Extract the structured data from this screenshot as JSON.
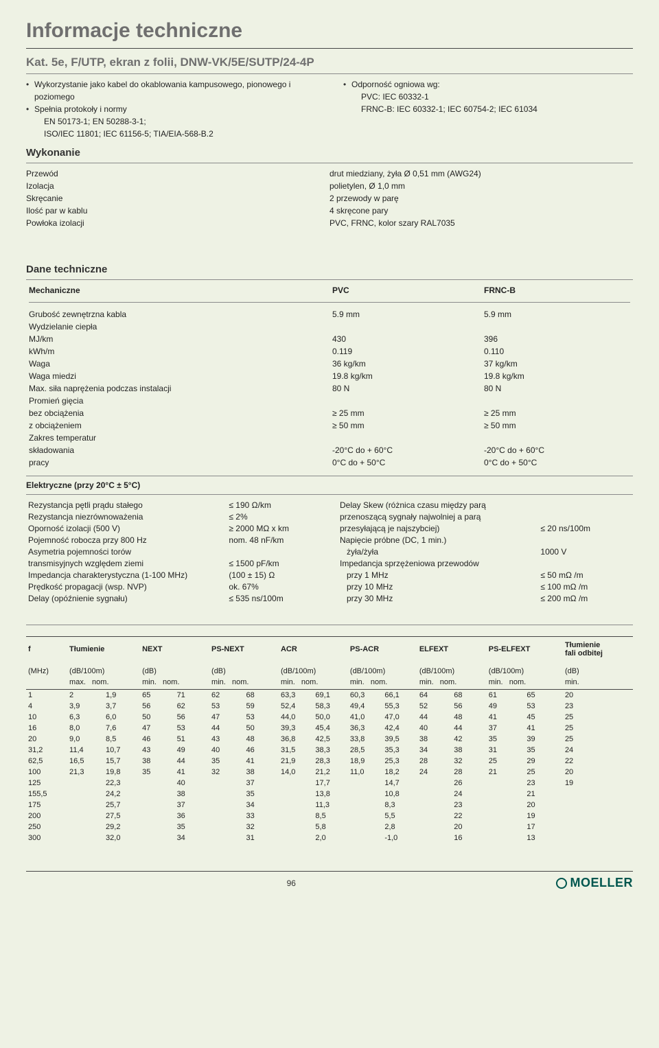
{
  "page": {
    "title": "Informacje techniczne",
    "subtitle": "Kat. 5e, F/UTP, ekran z folii, DNW-VK/5E/SUTP/24-4P",
    "page_number": "96",
    "logo_text": "MOELLER"
  },
  "bullets_left": [
    {
      "text": "Wykorzystanie jako kabel do okablowania kampusowego, pionowego i poziomego"
    },
    {
      "text": "Spełnia protokoły i normy",
      "sub": [
        "EN 50173-1; EN 50288-3-1;",
        "ISO/IEC 11801; IEC 61156-5; TIA/EIA-568-B.2"
      ]
    }
  ],
  "bullets_right": [
    {
      "text": "Odporność ogniowa wg:",
      "sub": [
        "PVC: IEC 60332-1",
        "FRNC-B: IEC 60332-1; IEC 60754-2; IEC 61034"
      ]
    }
  ],
  "wykonanie": {
    "title": "Wykonanie",
    "rows": [
      [
        "Przewód",
        "drut miedziany, żyła Ø 0,51 mm (AWG24)"
      ],
      [
        "Izolacja",
        "polietylen, Ø 1,0 mm"
      ],
      [
        "Skręcanie",
        "2 przewody w parę"
      ],
      [
        "Ilość par w kablu",
        "4 skręcone pary"
      ],
      [
        "Powłoka izolacji",
        "PVC, FRNC, kolor szary RAL7035"
      ]
    ]
  },
  "dane": {
    "title": "Dane techniczne",
    "mech_title": "Mechaniczne",
    "mech_headers": [
      "",
      "PVC",
      "FRNC-B"
    ],
    "mech_rows": [
      {
        "k": "Grubość zewnętrzna kabla",
        "a": "5.9 mm",
        "b": "5.9 mm"
      },
      {
        "k": "Wydzielanie ciepła",
        "a": "",
        "b": ""
      },
      {
        "k_i": "MJ/km",
        "a": "430",
        "b": "396"
      },
      {
        "k_i": "kWh/m",
        "a": "0.119",
        "b": "0.110"
      },
      {
        "k": "Waga",
        "a": "36 kg/km",
        "b": "37 kg/km"
      },
      {
        "k": "Waga miedzi",
        "a": "19.8 kg/km",
        "b": "19.8 kg/km"
      },
      {
        "k": "Max. siła naprężenia podczas instalacji",
        "a": "80 N",
        "b": "80 N"
      },
      {
        "k": "Promień gięcia",
        "a": "",
        "b": ""
      },
      {
        "k_i": "bez obciążenia",
        "a": "≥ 25 mm",
        "b": "≥ 25 mm"
      },
      {
        "k_i": "z obciążeniem",
        "a": "≥ 50 mm",
        "b": "≥ 50 mm"
      },
      {
        "k": "Zakres temperatur",
        "a": "",
        "b": ""
      },
      {
        "k_i": "składowania",
        "a": "-20°C do + 60°C",
        "b": "-20°C do + 60°C"
      },
      {
        "k_i": "pracy",
        "a": "0°C do + 50°C",
        "b": "0°C do + 50°C"
      }
    ],
    "elec_title": "Elektryczne (przy 20°C ± 5°C)",
    "elec_left": [
      [
        "Rezystancja pętli prądu stałego",
        "≤ 190 Ω/km"
      ],
      [
        "Rezystancja niezrównoważenia",
        "≤ 2%"
      ],
      [
        "Oporność izolacji (500 V)",
        "≥ 2000 MΩ x km"
      ],
      [
        "Pojemność robocza przy 800 Hz",
        "nom. 48 nF/km"
      ],
      [
        "Asymetria pojemności torów",
        ""
      ],
      [
        "transmisyjnych względem ziemi",
        "≤ 1500 pF/km"
      ],
      [
        "Impedancja charakterystyczna (1-100 MHz)",
        "(100 ± 15) Ω"
      ],
      [
        "Prędkość propagacji (wsp. NVP)",
        "ok. 67%"
      ],
      [
        "Delay (opóźnienie sygnału)",
        "≤ 535 ns/100m"
      ]
    ],
    "elec_right": [
      [
        "Delay Skew (różnica czasu między parą",
        ""
      ],
      [
        "przenoszącą sygnały najwolniej a parą",
        ""
      ],
      [
        "przesyłającą je najszybciej)",
        "≤ 20 ns/100m"
      ],
      [
        "Napięcie próbne (DC, 1 min.)",
        ""
      ],
      [
        "   żyła/żyła",
        "1000 V"
      ],
      [
        "Impedancja sprzężeniowa przewodów",
        ""
      ],
      [
        "   przy 1 MHz",
        "≤ 50 mΩ /m"
      ],
      [
        "   przy 10 MHz",
        "≤ 100 mΩ /m"
      ],
      [
        "   przy 30 MHz",
        "≤ 200 mΩ /m"
      ]
    ]
  },
  "main_table": {
    "top_headers": [
      "f",
      "Tłumienie",
      "NEXT",
      "PS-NEXT",
      "ACR",
      "PS-ACR",
      "ELFEXT",
      "PS-ELFEXT",
      "Tłumienie fali odbitej"
    ],
    "unit_row": [
      "(MHz)",
      "(dB/100m)",
      "(dB)",
      "(dB)",
      "(dB/100m)",
      "(dB/100m)",
      "(dB/100m)",
      "(dB/100m)",
      "(dB)"
    ],
    "sub_row": [
      "",
      "max.   nom.",
      "min.   nom.",
      "min.   nom.",
      "min.   nom.",
      "min.   nom.",
      "min.   nom.",
      "min.   nom.",
      "min."
    ],
    "rows": [
      [
        "1",
        "2",
        "1,9",
        "65",
        "71",
        "62",
        "68",
        "63,3",
        "69,1",
        "60,3",
        "66,1",
        "64",
        "68",
        "61",
        "65",
        "20"
      ],
      [
        "4",
        "3,9",
        "3,7",
        "56",
        "62",
        "53",
        "59",
        "52,4",
        "58,3",
        "49,4",
        "55,3",
        "52",
        "56",
        "49",
        "53",
        "23"
      ],
      [
        "10",
        "6,3",
        "6,0",
        "50",
        "56",
        "47",
        "53",
        "44,0",
        "50,0",
        "41,0",
        "47,0",
        "44",
        "48",
        "41",
        "45",
        "25"
      ],
      [
        "16",
        "8,0",
        "7,6",
        "47",
        "53",
        "44",
        "50",
        "39,3",
        "45,4",
        "36,3",
        "42,4",
        "40",
        "44",
        "37",
        "41",
        "25"
      ],
      [
        "20",
        "9,0",
        "8,5",
        "46",
        "51",
        "43",
        "48",
        "36,8",
        "42,5",
        "33,8",
        "39,5",
        "38",
        "42",
        "35",
        "39",
        "25"
      ],
      [
        "31,2",
        "11,4",
        "10,7",
        "43",
        "49",
        "40",
        "46",
        "31,5",
        "38,3",
        "28,5",
        "35,3",
        "34",
        "38",
        "31",
        "35",
        "24"
      ],
      [
        "62,5",
        "16,5",
        "15,7",
        "38",
        "44",
        "35",
        "41",
        "21,9",
        "28,3",
        "18,9",
        "25,3",
        "28",
        "32",
        "25",
        "29",
        "22"
      ],
      [
        "100",
        "21,3",
        "19,8",
        "35",
        "41",
        "32",
        "38",
        "14,0",
        "21,2",
        "11,0",
        "18,2",
        "24",
        "28",
        "21",
        "25",
        "20"
      ],
      [
        "125",
        "",
        "22,3",
        "",
        "40",
        "",
        "37",
        "",
        "17,7",
        "",
        "14,7",
        "",
        "26",
        "",
        "23",
        "19"
      ],
      [
        "155,5",
        "",
        "24,2",
        "",
        "38",
        "",
        "35",
        "",
        "13,8",
        "",
        "10,8",
        "",
        "24",
        "",
        "21",
        ""
      ],
      [
        "175",
        "",
        "25,7",
        "",
        "37",
        "",
        "34",
        "",
        "11,3",
        "",
        "8,3",
        "",
        "23",
        "",
        "20",
        ""
      ],
      [
        "200",
        "",
        "27,5",
        "",
        "36",
        "",
        "33",
        "",
        "8,5",
        "",
        "5,5",
        "",
        "22",
        "",
        "19",
        ""
      ],
      [
        "250",
        "",
        "29,2",
        "",
        "35",
        "",
        "32",
        "",
        "5,8",
        "",
        "2,8",
        "",
        "20",
        "",
        "17",
        ""
      ],
      [
        "300",
        "",
        "32,0",
        "",
        "34",
        "",
        "31",
        "",
        "2,0",
        "",
        "-1,0",
        "",
        "16",
        "",
        "13",
        ""
      ]
    ]
  },
  "colors": {
    "bg": "#eef2e4",
    "heading": "#6f6f6f",
    "rule": "#444444",
    "logo": "#00564e"
  }
}
